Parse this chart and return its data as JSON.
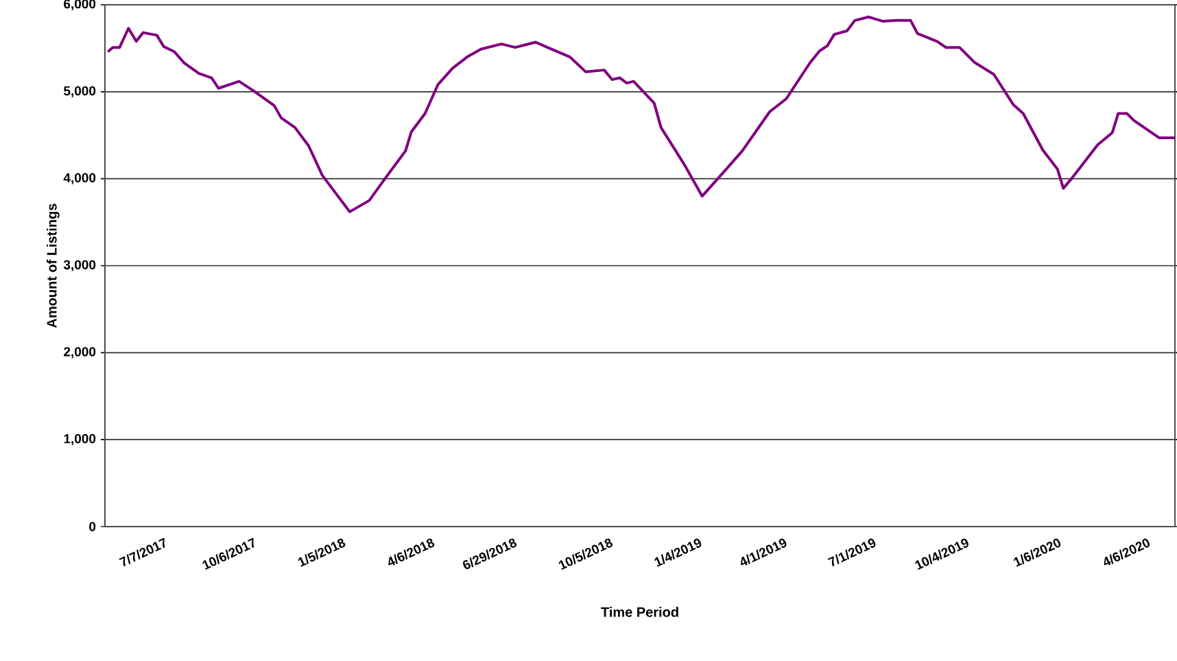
{
  "chart_data": {
    "type": "line",
    "xlabel": "Time Period",
    "ylabel": "Amount of Listings",
    "x": [
      "2017-05-08",
      "2017-05-13",
      "2017-05-20",
      "2017-05-29",
      "2017-06-06",
      "2017-06-13",
      "2017-06-27",
      "2017-07-04",
      "2017-07-15",
      "2017-07-25",
      "2017-08-09",
      "2017-08-22",
      "2017-08-29",
      "2017-09-19",
      "2017-10-04",
      "2017-10-25",
      "2017-11-01",
      "2017-11-15",
      "2017-11-29",
      "2017-12-13",
      "2018-01-10",
      "2018-01-30",
      "2018-02-15",
      "2018-03-08",
      "2018-03-14",
      "2018-03-28",
      "2018-04-10",
      "2018-04-25",
      "2018-05-10",
      "2018-05-24",
      "2018-06-14",
      "2018-06-28",
      "2018-07-19",
      "2018-07-31",
      "2018-08-23",
      "2018-09-08",
      "2018-09-27",
      "2018-10-05",
      "2018-10-13",
      "2018-10-20",
      "2018-10-27",
      "2018-11-17",
      "2018-11-24",
      "2018-12-18",
      "2019-01-05",
      "2019-01-21",
      "2019-02-15",
      "2019-03-15",
      "2019-04-01",
      "2019-04-25",
      "2019-05-05",
      "2019-05-13",
      "2019-05-20",
      "2019-06-02",
      "2019-06-10",
      "2019-06-24",
      "2019-07-09",
      "2019-07-22",
      "2019-08-06",
      "2019-08-13",
      "2019-09-02",
      "2019-09-11",
      "2019-09-25",
      "2019-10-10",
      "2019-10-30",
      "2019-11-19",
      "2019-11-29",
      "2019-12-19",
      "2020-01-03",
      "2020-01-09",
      "2020-01-18",
      "2020-02-13",
      "2020-02-28",
      "2020-03-05",
      "2020-03-14",
      "2020-03-21",
      "2020-04-16",
      "2020-05-02"
    ],
    "series": [
      {
        "color": "#800080",
        "values": [
          5460,
          5510,
          5510,
          5730,
          5580,
          5680,
          5650,
          5520,
          5460,
          5330,
          5210,
          5160,
          5040,
          5120,
          5010,
          4840,
          4700,
          4590,
          4380,
          4040,
          3620,
          3750,
          4000,
          4320,
          4540,
          4750,
          5080,
          5270,
          5400,
          5490,
          5550,
          5510,
          5570,
          5510,
          5400,
          5230,
          5250,
          5140,
          5160,
          5100,
          5120,
          4870,
          4590,
          4160,
          3800,
          4000,
          4320,
          4770,
          4920,
          5330,
          5470,
          5530,
          5660,
          5700,
          5820,
          5860,
          5810,
          5820,
          5820,
          5670,
          5580,
          5510,
          5510,
          5340,
          5200,
          4850,
          4750,
          4330,
          4110,
          3890,
          4010,
          4390,
          4530,
          4750,
          4750,
          4670,
          4470,
          4470
        ]
      }
    ],
    "xlim": [
      "2017-05-05",
      "2020-05-02"
    ],
    "xticks": [
      {
        "value": "2017-07-07",
        "label": "7/7/2017"
      },
      {
        "value": "2017-10-06",
        "label": "10/6/2017"
      },
      {
        "value": "2018-01-05",
        "label": "1/5/2018"
      },
      {
        "value": "2018-04-06",
        "label": "4/6/2018"
      },
      {
        "value": "2018-06-29",
        "label": "6/29/2018"
      },
      {
        "value": "2018-10-05",
        "label": "10/5/2018"
      },
      {
        "value": "2019-01-04",
        "label": "1/4/2019"
      },
      {
        "value": "2019-04-01",
        "label": "4/1/2019"
      },
      {
        "value": "2019-07-01",
        "label": "7/1/2019"
      },
      {
        "value": "2019-10-04",
        "label": "10/4/2019"
      },
      {
        "value": "2020-01-06",
        "label": "1/6/2020"
      },
      {
        "value": "2020-04-06",
        "label": "4/6/2020"
      }
    ],
    "ylim": [
      0,
      6000
    ],
    "yticks": [
      0,
      {
        "value": 1000,
        "label": "1,000"
      },
      {
        "value": 2000,
        "label": "2,000"
      },
      {
        "value": 3000,
        "label": "3,000"
      },
      {
        "value": 4000,
        "label": "4,000"
      },
      {
        "value": 5000,
        "label": "5,000"
      },
      {
        "value": 6000,
        "label": "6,000"
      }
    ],
    "grid": "y"
  }
}
